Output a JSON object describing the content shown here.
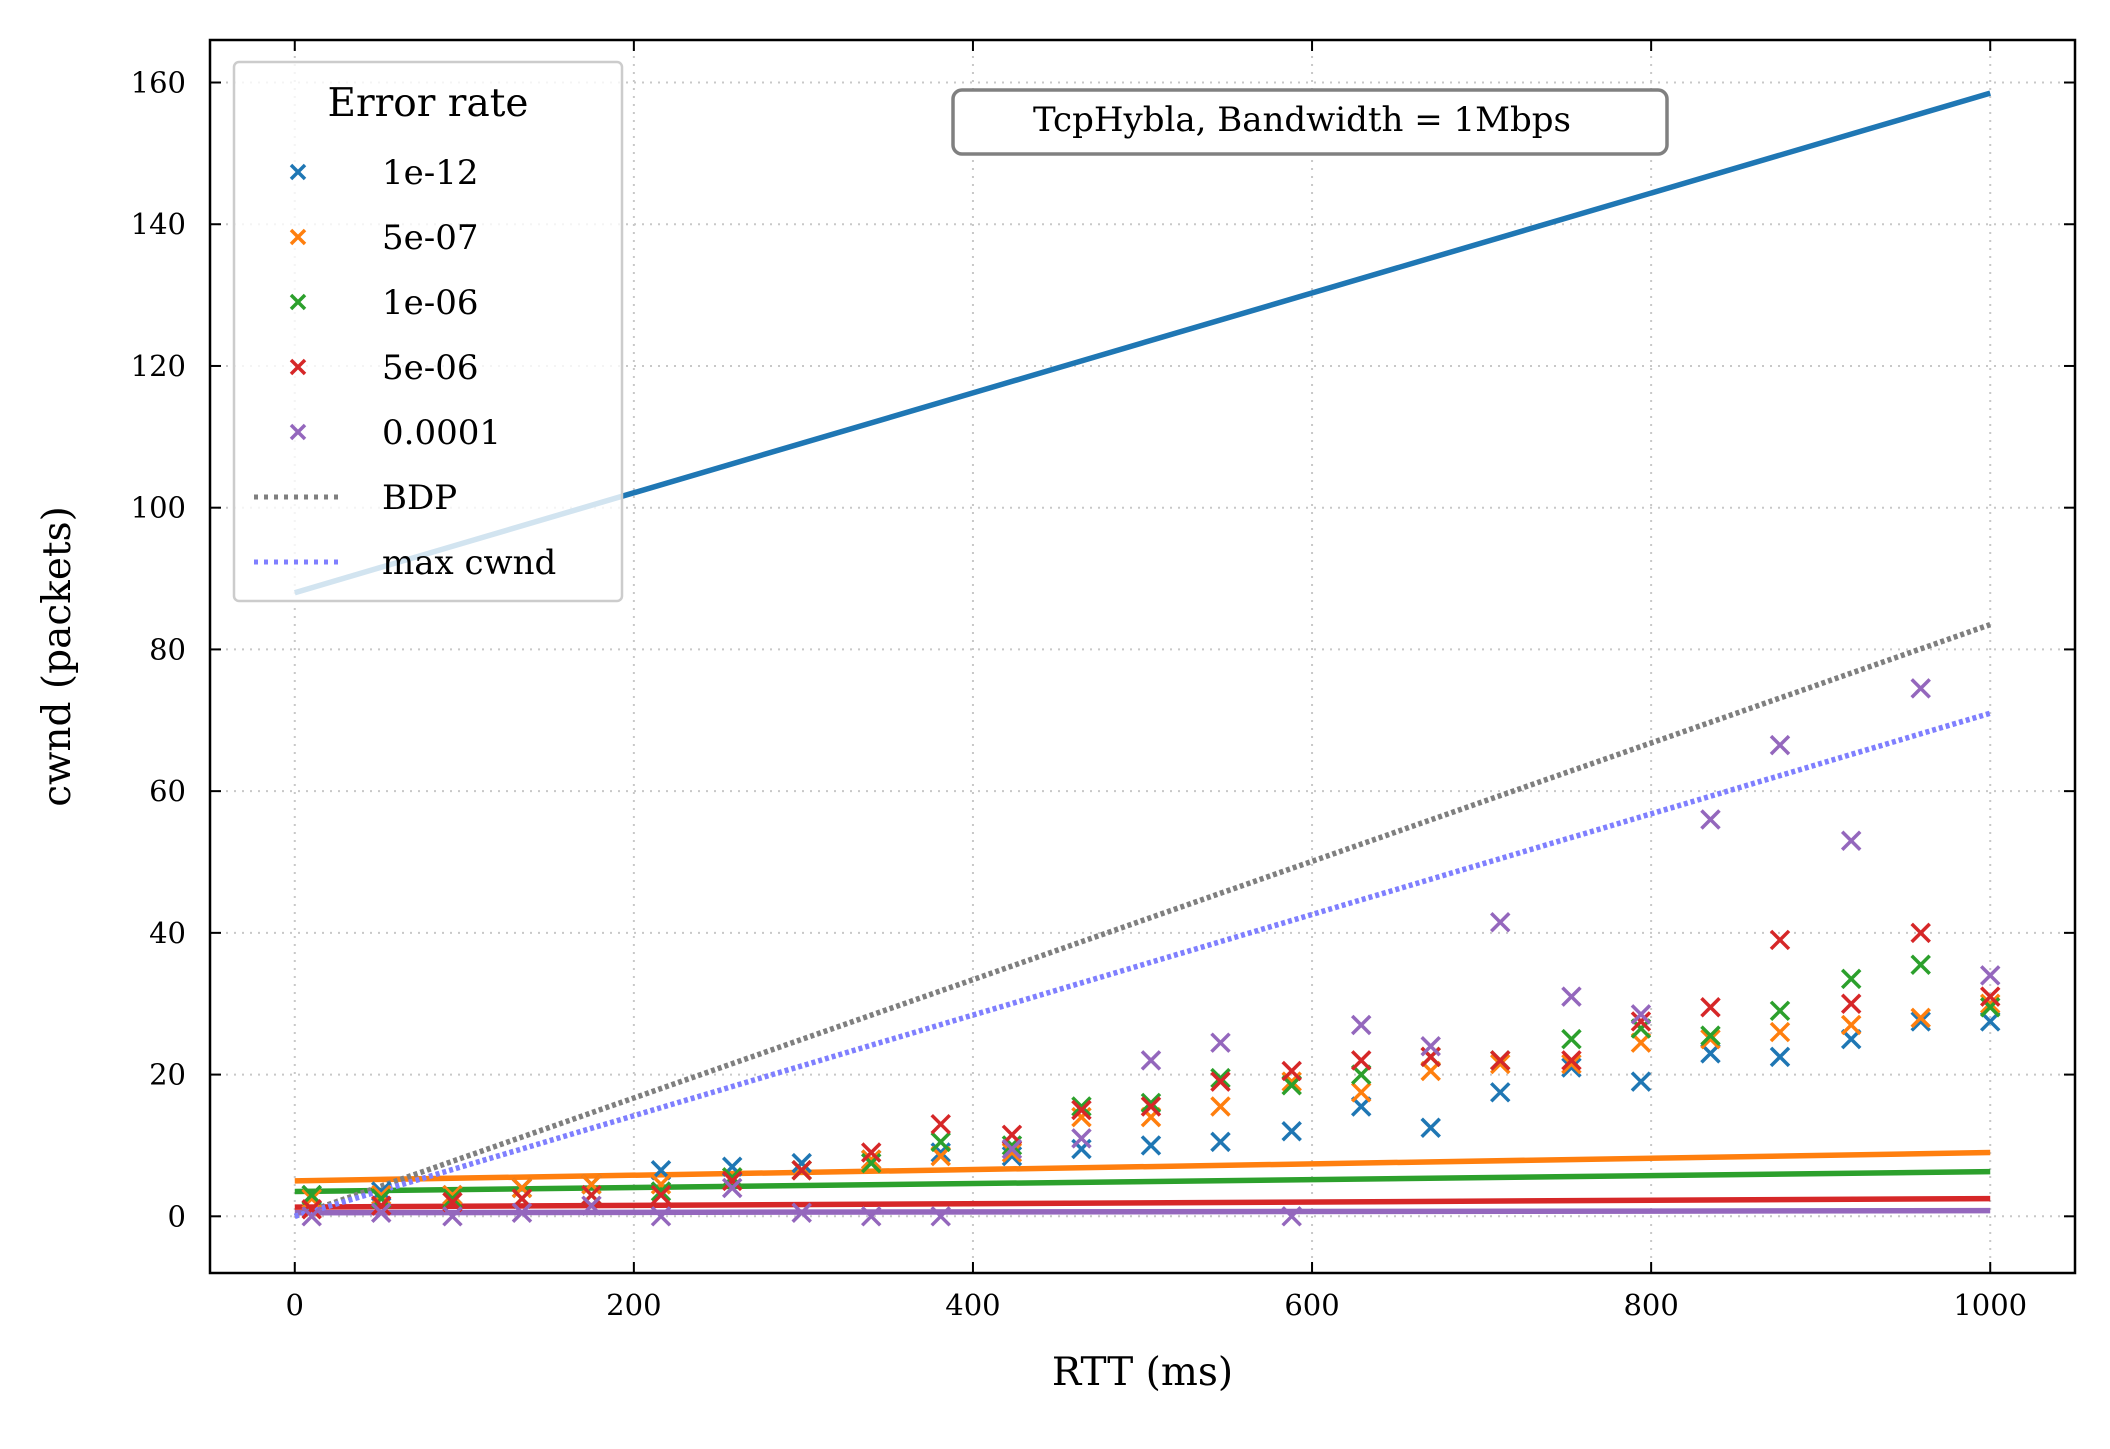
{
  "chart_data": {
    "type": "scatter",
    "annotation": "TcpHybla, Bandwidth = 1Mbps",
    "xlabel": "RTT (ms)",
    "ylabel": "cwnd (packets)",
    "xlim": [
      -50,
      1050
    ],
    "ylim": [
      -8,
      166
    ],
    "xticks": [
      0,
      200,
      400,
      600,
      800,
      1000
    ],
    "yticks": [
      0,
      20,
      40,
      60,
      80,
      100,
      120,
      140,
      160
    ],
    "grid": true,
    "legend": {
      "title": "Error rate",
      "placement": "top-left",
      "entries": [
        {
          "label": "1e-12",
          "kind": "marker",
          "color": "#1f77b4"
        },
        {
          "label": "5e-07",
          "kind": "marker",
          "color": "#ff7f0e"
        },
        {
          "label": "1e-06",
          "kind": "marker",
          "color": "#2ca02c"
        },
        {
          "label": "5e-06",
          "kind": "marker",
          "color": "#d62728"
        },
        {
          "label": "0.0001",
          "kind": "marker",
          "color": "#9467bd"
        },
        {
          "label": "BDP",
          "kind": "dotted-line",
          "color": "#7f7f7f"
        },
        {
          "label": "max cwnd",
          "kind": "dotted-line",
          "color": "#7f7fff"
        }
      ]
    },
    "x": [
      10,
      51,
      93,
      134,
      175,
      216,
      258,
      299,
      340,
      381,
      423,
      464,
      505,
      546,
      588,
      629,
      670,
      711,
      753,
      794,
      835,
      876,
      918,
      959,
      1000
    ],
    "series": [
      {
        "name": "1e-12",
        "color": "#1f77b4",
        "values": [
          3,
          3.5,
          3,
          4,
          4.5,
          6.5,
          7,
          7.5,
          8,
          9,
          8.5,
          9.5,
          10,
          10.5,
          12,
          15.5,
          12.5,
          17.5,
          21,
          19,
          23,
          22.5,
          25,
          27.5,
          27.5
        ]
      },
      {
        "name": "5e-07",
        "color": "#ff7f0e",
        "values": [
          2.5,
          3,
          3,
          4,
          4.5,
          4.5,
          5.5,
          6.5,
          8,
          8.5,
          9,
          14,
          14,
          15.5,
          19,
          17.5,
          20.5,
          21.5,
          21.5,
          24.5,
          25,
          26,
          27,
          28,
          30
        ]
      },
      {
        "name": "1e-06",
        "color": "#2ca02c",
        "values": [
          3,
          2.5,
          2.5,
          2.5,
          3,
          3.5,
          5.5,
          6.5,
          7.5,
          10.5,
          10,
          15.5,
          16,
          19.5,
          18.5,
          20,
          22.5,
          22,
          25,
          26.5,
          25.5,
          29,
          33.5,
          35.5,
          29.5
        ]
      },
      {
        "name": "5e-06",
        "color": "#d62728",
        "values": [
          1,
          1.5,
          2,
          2.5,
          3,
          3,
          5,
          6.5,
          9,
          13,
          11.5,
          15,
          15.5,
          19,
          20.5,
          22,
          22.5,
          22,
          22,
          27.5,
          29.5,
          39,
          30,
          40,
          31
        ]
      },
      {
        "name": "0.0001",
        "color": "#9467bd",
        "values": [
          0,
          0.5,
          0,
          0.5,
          1.5,
          0,
          4,
          0.5,
          0,
          0,
          9.5,
          11,
          22,
          24.5,
          0,
          27,
          24,
          41.5,
          31,
          28.5,
          56,
          66.5,
          53,
          74.5,
          34
        ]
      }
    ],
    "lines": [
      {
        "name": "1e-12",
        "style": "solid",
        "color": "#1f77b4",
        "x": [
          0,
          1000
        ],
        "y": [
          88,
          158.5
        ]
      },
      {
        "name": "5e-07",
        "style": "solid",
        "color": "#ff7f0e",
        "x": [
          0,
          1000
        ],
        "y": [
          5,
          9
        ]
      },
      {
        "name": "1e-06",
        "style": "solid",
        "color": "#2ca02c",
        "x": [
          0,
          1000
        ],
        "y": [
          3.5,
          6.3
        ]
      },
      {
        "name": "5e-06",
        "style": "solid",
        "color": "#d62728",
        "x": [
          0,
          1000
        ],
        "y": [
          1.3,
          2.5
        ]
      },
      {
        "name": "0.0001",
        "style": "solid",
        "color": "#9467bd",
        "x": [
          0,
          1000
        ],
        "y": [
          0.5,
          0.8
        ]
      },
      {
        "name": "BDP",
        "style": "dotted",
        "color": "#7f7f7f",
        "x": [
          0,
          1000
        ],
        "y": [
          0,
          83.5
        ]
      },
      {
        "name": "max cwnd",
        "style": "dotted",
        "color": "#7f7fff",
        "x": [
          0,
          1000
        ],
        "y": [
          0,
          71
        ]
      }
    ]
  }
}
